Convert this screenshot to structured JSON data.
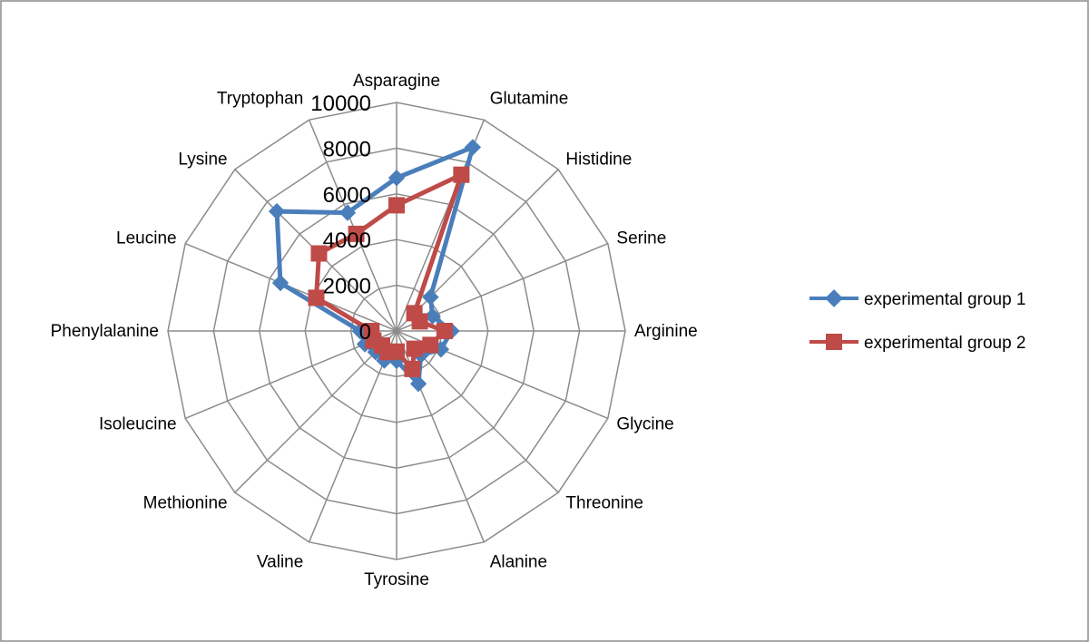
{
  "chart_data": {
    "type": "radar",
    "title": "",
    "categories": [
      "Asparagine",
      "Glutamine",
      "Histidine",
      "Serine",
      "Arginine",
      "Glycine",
      "Threonine",
      "Alanine",
      "Tyrosine",
      "Valine",
      "Methionine",
      "Isoleucine",
      "Phenylalanine",
      "Leucine",
      "Lysine",
      "Tryptophan"
    ],
    "r_ticks": [
      0,
      2000,
      4000,
      6000,
      8000,
      10000
    ],
    "r_tick_labels": [
      "0",
      "2000",
      "4000",
      "6000",
      "8000",
      "10000"
    ],
    "rlim": [
      0,
      10000
    ],
    "grid": true,
    "legend_position": "right",
    "series": [
      {
        "name": "experimental group 1",
        "color": "#4a7ebb",
        "marker": "diamond",
        "values": [
          6700,
          8700,
          2100,
          1700,
          2400,
          2100,
          1500,
          2500,
          1300,
          1400,
          1300,
          1500,
          1600,
          5500,
          7400,
          5600
        ]
      },
      {
        "name": "experimental group 2",
        "color": "#be4b48",
        "marker": "square",
        "values": [
          5500,
          7400,
          1100,
          1100,
          2100,
          1600,
          1100,
          1800,
          900,
          1000,
          900,
          1100,
          1100,
          3800,
          4800,
          4600
        ]
      }
    ]
  }
}
